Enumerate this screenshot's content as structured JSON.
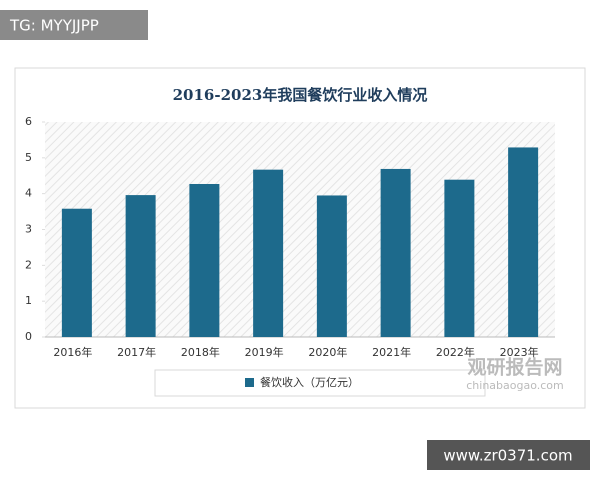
{
  "chart_data": {
    "type": "bar",
    "title": "2016-2023年我国餐饮行业收入情况",
    "categories": [
      "2016年",
      "2017年",
      "2018年",
      "2019年",
      "2020年",
      "2021年",
      "2022年",
      "2023年"
    ],
    "series": [
      {
        "name": "餐饮收入（万亿元）",
        "color": "#1d6a8c",
        "values": [
          3.58,
          3.96,
          4.27,
          4.67,
          3.95,
          4.69,
          4.39,
          5.29
        ]
      }
    ],
    "ylim": [
      0,
      6
    ],
    "yticks": [
      0,
      1,
      2,
      3,
      4,
      5,
      6
    ],
    "legend": "bottom"
  },
  "watermark_top": "TG: MYYJJPP",
  "watermark_bottom": "www.zr0371.com",
  "logo": {
    "name": "观研报告网",
    "url": "chinabaogao.com"
  }
}
